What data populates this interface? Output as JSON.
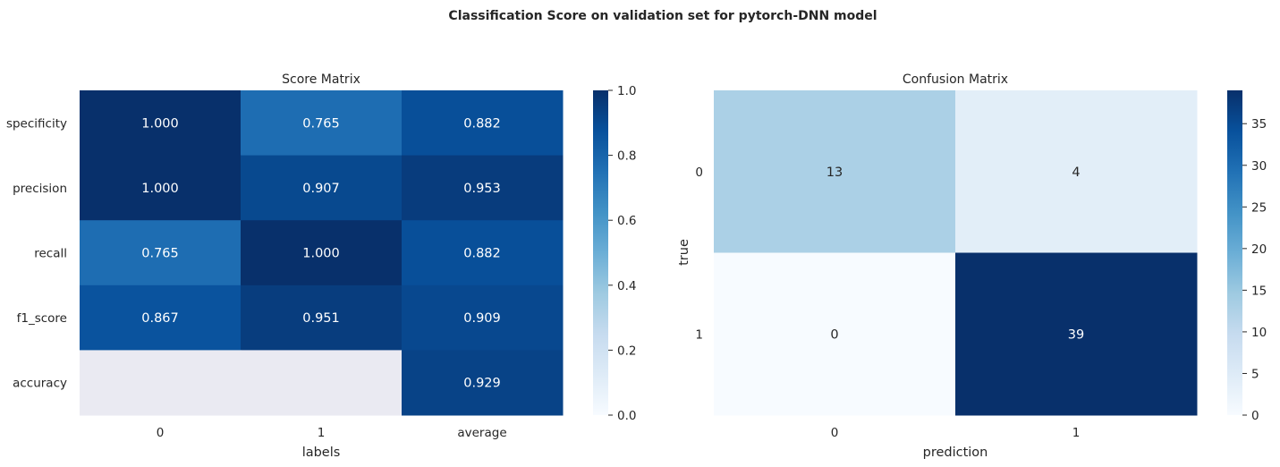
{
  "figure": {
    "suptitle": "Classification Score on validation set for pytorch-DNN model"
  },
  "colors": {
    "na_cell": "#eaeaf2",
    "cmap": [
      "#f7fbff",
      "#deebf7",
      "#c6dbef",
      "#9ecae1",
      "#6baed6",
      "#4292c6",
      "#2171b5",
      "#08519c",
      "#08306b"
    ]
  },
  "chart_data": [
    {
      "type": "heatmap",
      "title": "Score Matrix",
      "xlabel": "labels",
      "ylabel": "",
      "x_categories": [
        "0",
        "1",
        "average"
      ],
      "y_categories": [
        "specificity",
        "precision",
        "recall",
        "f1_score",
        "accuracy"
      ],
      "values": [
        [
          1.0,
          0.765,
          0.882
        ],
        [
          1.0,
          0.907,
          0.953
        ],
        [
          0.765,
          1.0,
          0.882
        ],
        [
          0.867,
          0.951,
          0.909
        ],
        [
          null,
          null,
          0.929
        ]
      ],
      "cell_labels": [
        [
          "1.000",
          "0.765",
          "0.882"
        ],
        [
          "1.000",
          "0.907",
          "0.953"
        ],
        [
          "0.765",
          "1.000",
          "0.882"
        ],
        [
          "0.867",
          "0.951",
          "0.909"
        ],
        [
          "",
          "",
          "0.929"
        ]
      ],
      "colorbar": {
        "vmin": 0.0,
        "vmax": 1.0,
        "ticks": [
          0.0,
          0.2,
          0.4,
          0.6,
          0.8,
          1.0
        ],
        "tick_labels": [
          "0.0",
          "0.2",
          "0.4",
          "0.6",
          "0.8",
          "1.0"
        ]
      },
      "cmap": "Blues"
    },
    {
      "type": "heatmap",
      "title": "Confusion Matrix",
      "xlabel": "prediction",
      "ylabel": "true",
      "x_categories": [
        "0",
        "1"
      ],
      "y_categories": [
        "0",
        "1"
      ],
      "values": [
        [
          13,
          4
        ],
        [
          0,
          39
        ]
      ],
      "cell_labels": [
        [
          "13",
          "4"
        ],
        [
          "0",
          "39"
        ]
      ],
      "colorbar": {
        "vmin": 0,
        "vmax": 39,
        "ticks": [
          0,
          5,
          10,
          15,
          20,
          25,
          30,
          35
        ],
        "tick_labels": [
          "0",
          "5",
          "10",
          "15",
          "20",
          "25",
          "30",
          "35"
        ]
      },
      "cmap": "Blues"
    }
  ]
}
